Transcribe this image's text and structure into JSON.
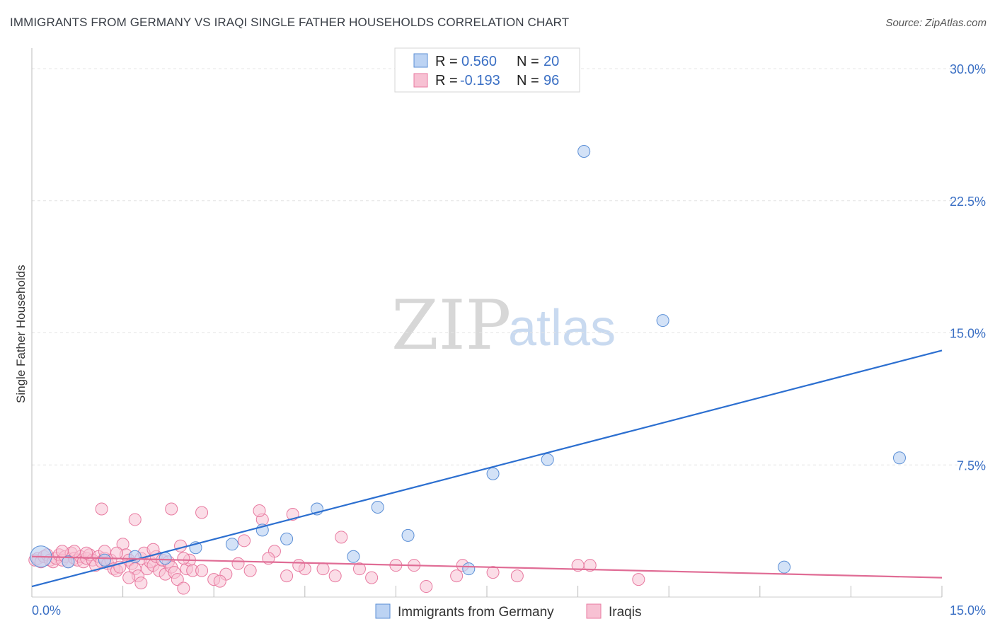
{
  "title": "IMMIGRANTS FROM GERMANY VS IRAQI SINGLE FATHER HOUSEHOLDS CORRELATION CHART",
  "source": "Source: ZipAtlas.com",
  "watermark": {
    "zip": "ZIP",
    "atlas": "atlas"
  },
  "colors": {
    "blue": "#5b8fd6",
    "blue_fill": "#bcd3f3",
    "blue_line": "#2c6fd0",
    "pink": "#e87aa0",
    "pink_fill": "#f7c1d3",
    "pink_line": "#e06c95",
    "grid": "#e4e4e4",
    "tick_label": "#3a6fc4"
  },
  "legend": {
    "rows": [
      {
        "r_label": "R =",
        "r_value": "0.560",
        "n_label": "N =",
        "n_value": "20",
        "series": "blue"
      },
      {
        "r_label": "R =",
        "r_value": "-0.193",
        "n_label": "N =",
        "n_value": "96",
        "series": "pink"
      }
    ]
  },
  "bottom_legend": [
    {
      "label": "Immigrants from Germany",
      "series": "blue"
    },
    {
      "label": "Iraqis",
      "series": "pink"
    }
  ],
  "chart_data": {
    "type": "scatter",
    "title": "IMMIGRANTS FROM GERMANY VS IRAQI SINGLE FATHER HOUSEHOLDS CORRELATION CHART",
    "xlabel": "",
    "ylabel": "Single Father Households",
    "xlim": [
      0,
      15
    ],
    "ylim": [
      0,
      30
    ],
    "x_ticks": [
      0,
      1.5,
      3,
      4.5,
      6,
      7.5,
      9,
      10.5,
      12,
      13.5,
      15
    ],
    "x_tick_labels": [
      {
        "value": 0,
        "label": "0.0%"
      },
      {
        "value": 15,
        "label": "15.0%"
      }
    ],
    "y_ticks": [
      7.5,
      15,
      22.5,
      30
    ],
    "y_tick_labels": [
      "7.5%",
      "15.0%",
      "22.5%",
      "30.0%"
    ],
    "series": [
      {
        "name": "Immigrants from Germany",
        "color": "blue",
        "points": [
          [
            0.15,
            2.3
          ],
          [
            0.6,
            2.0
          ],
          [
            1.2,
            2.1
          ],
          [
            1.7,
            2.3
          ],
          [
            2.2,
            2.2
          ],
          [
            2.7,
            2.8
          ],
          [
            3.3,
            3.0
          ],
          [
            3.8,
            3.8
          ],
          [
            4.2,
            3.3
          ],
          [
            4.7,
            5.0
          ],
          [
            5.3,
            2.3
          ],
          [
            5.7,
            5.1
          ],
          [
            6.2,
            3.5
          ],
          [
            7.2,
            1.6
          ],
          [
            7.6,
            7.0
          ],
          [
            8.5,
            7.8
          ],
          [
            9.1,
            25.3
          ],
          [
            10.4,
            15.7
          ],
          [
            12.4,
            1.7
          ],
          [
            14.3,
            7.9
          ]
        ]
      },
      {
        "name": "Iraqis",
        "color": "pink",
        "points": [
          [
            0.05,
            2.1
          ],
          [
            0.1,
            2.2
          ],
          [
            0.15,
            2.0
          ],
          [
            0.2,
            2.3
          ],
          [
            0.25,
            2.4
          ],
          [
            0.3,
            2.1
          ],
          [
            0.35,
            2.0
          ],
          [
            0.4,
            2.2
          ],
          [
            0.45,
            2.4
          ],
          [
            0.5,
            2.1
          ],
          [
            0.55,
            2.3
          ],
          [
            0.6,
            2.0
          ],
          [
            0.65,
            2.5
          ],
          [
            0.7,
            2.2
          ],
          [
            0.75,
            2.1
          ],
          [
            0.8,
            2.3
          ],
          [
            0.85,
            2.0
          ],
          [
            0.9,
            2.2
          ],
          [
            0.95,
            2.4
          ],
          [
            1.0,
            2.1
          ],
          [
            1.05,
            1.8
          ],
          [
            1.1,
            2.3
          ],
          [
            1.15,
            2.0
          ],
          [
            1.2,
            2.2
          ],
          [
            1.25,
            1.9
          ],
          [
            1.3,
            2.1
          ],
          [
            1.35,
            1.6
          ],
          [
            1.4,
            1.5
          ],
          [
            1.45,
            1.7
          ],
          [
            1.5,
            3.0
          ],
          [
            1.55,
            2.4
          ],
          [
            1.6,
            2.1
          ],
          [
            1.65,
            1.9
          ],
          [
            1.7,
            1.6
          ],
          [
            1.75,
            1.2
          ],
          [
            1.8,
            2.2
          ],
          [
            1.85,
            2.5
          ],
          [
            1.9,
            1.6
          ],
          [
            1.95,
            2.0
          ],
          [
            2.0,
            1.8
          ],
          [
            2.05,
            2.3
          ],
          [
            2.1,
            1.5
          ],
          [
            2.15,
            2.1
          ],
          [
            2.2,
            1.3
          ],
          [
            2.25,
            2.0
          ],
          [
            2.3,
            1.7
          ],
          [
            2.35,
            1.4
          ],
          [
            2.4,
            1.0
          ],
          [
            2.45,
            2.9
          ],
          [
            2.5,
            0.5
          ],
          [
            2.55,
            1.6
          ],
          [
            2.6,
            2.1
          ],
          [
            2.65,
            1.5
          ],
          [
            2.8,
            1.5
          ],
          [
            3.0,
            1.0
          ],
          [
            3.2,
            1.3
          ],
          [
            3.4,
            1.9
          ],
          [
            3.6,
            1.5
          ],
          [
            3.8,
            4.4
          ],
          [
            4.0,
            2.6
          ],
          [
            4.2,
            1.2
          ],
          [
            4.5,
            1.6
          ],
          [
            4.8,
            1.6
          ],
          [
            5.0,
            1.2
          ],
          [
            5.4,
            1.6
          ],
          [
            6.0,
            1.8
          ],
          [
            6.5,
            0.6
          ],
          [
            7.1,
            1.8
          ],
          [
            7.6,
            1.4
          ],
          [
            8.0,
            1.2
          ],
          [
            9.0,
            1.8
          ],
          [
            9.2,
            1.8
          ],
          [
            10.0,
            1.0
          ],
          [
            1.15,
            5.0
          ],
          [
            1.7,
            4.4
          ],
          [
            2.3,
            5.0
          ],
          [
            2.8,
            4.8
          ],
          [
            3.75,
            4.9
          ],
          [
            4.3,
            4.7
          ],
          [
            5.1,
            3.4
          ],
          [
            0.5,
            2.6
          ],
          [
            0.7,
            2.6
          ],
          [
            0.9,
            2.5
          ],
          [
            1.2,
            2.6
          ],
          [
            1.4,
            2.5
          ],
          [
            1.6,
            1.1
          ],
          [
            1.8,
            0.8
          ],
          [
            2.0,
            2.7
          ],
          [
            2.5,
            2.2
          ],
          [
            3.1,
            0.9
          ],
          [
            3.5,
            3.2
          ],
          [
            3.9,
            2.2
          ],
          [
            4.4,
            1.8
          ],
          [
            5.6,
            1.1
          ],
          [
            6.3,
            1.8
          ],
          [
            7.0,
            1.2
          ]
        ]
      }
    ],
    "trendlines": [
      {
        "series": "Immigrants from Germany",
        "x": [
          0,
          15
        ],
        "y": [
          0.6,
          14.0
        ]
      },
      {
        "series": "Iraqis",
        "x": [
          0,
          15
        ],
        "y": [
          2.3,
          1.1
        ]
      }
    ],
    "grid": true,
    "legend_position": "top-center"
  }
}
